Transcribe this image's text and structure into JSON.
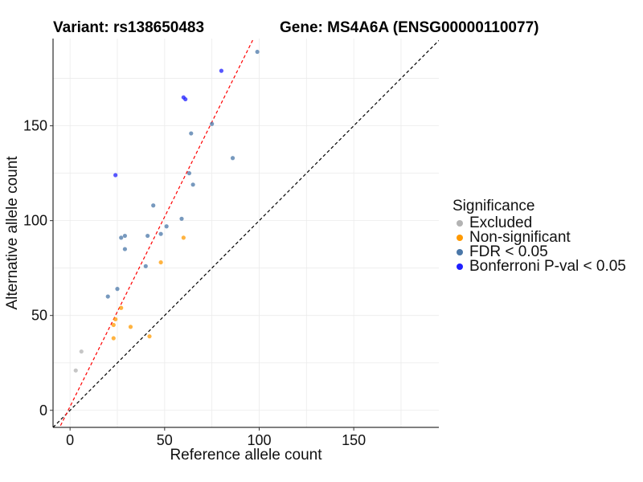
{
  "header": {
    "variant_label": "Variant: rs138650483",
    "gene_label": "Gene: MS4A6A (ENSG00000110077)"
  },
  "chart_data": {
    "type": "scatter",
    "xlabel": "Reference allele count",
    "ylabel": "Alternative allele count",
    "xlim": [
      -9,
      195
    ],
    "ylim": [
      -9,
      196
    ],
    "x_ticks": [
      0,
      50,
      100,
      150
    ],
    "y_ticks": [
      0,
      50,
      100,
      150
    ],
    "grid": true,
    "legend_placement": "right",
    "legend_title": "Significance",
    "reference_lines": [
      {
        "slope": 1,
        "intercept": 0,
        "color": "#000000",
        "style": "dashed"
      },
      {
        "slope": 2.0,
        "intercept": 2,
        "color": "#ff0000",
        "style": "dashed"
      }
    ],
    "series": [
      {
        "name": "Excluded",
        "color": "#b3b3b3",
        "points": [
          [
            3,
            21
          ],
          [
            6,
            31
          ]
        ]
      },
      {
        "name": "Non-significant",
        "color": "#ff9900",
        "points": [
          [
            23,
            38
          ],
          [
            23,
            45
          ],
          [
            24,
            48
          ],
          [
            27,
            54
          ],
          [
            32,
            44
          ],
          [
            42,
            39
          ],
          [
            48,
            78
          ],
          [
            60,
            91
          ]
        ]
      },
      {
        "name": "FDR < 0.05",
        "color": "#4a77a8",
        "points": [
          [
            20,
            60
          ],
          [
            25,
            64
          ],
          [
            27,
            91
          ],
          [
            29,
            92
          ],
          [
            29,
            85
          ],
          [
            40,
            76
          ],
          [
            41,
            92
          ],
          [
            44,
            108
          ],
          [
            48,
            93
          ],
          [
            51,
            97
          ],
          [
            59,
            101
          ],
          [
            63,
            125
          ],
          [
            64,
            146
          ],
          [
            65,
            119
          ],
          [
            75,
            151
          ],
          [
            86,
            133
          ],
          [
            99,
            189
          ]
        ]
      },
      {
        "name": "Bonferroni P-val < 0.05",
        "color": "#1f1fff",
        "points": [
          [
            24,
            124
          ],
          [
            60,
            165
          ],
          [
            61,
            164
          ],
          [
            80,
            179
          ]
        ]
      }
    ]
  }
}
